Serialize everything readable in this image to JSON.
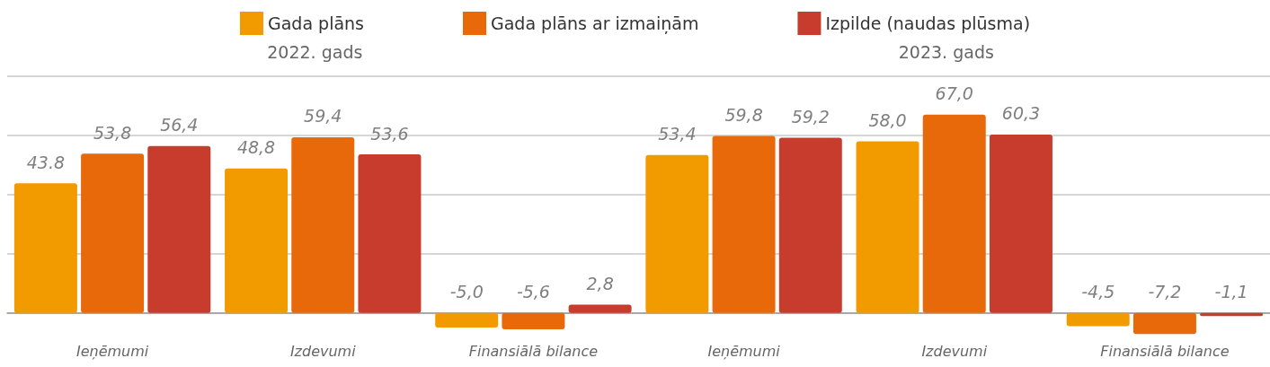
{
  "chart_data": {
    "type": "bar",
    "categories": [
      "Ieņēmumi",
      "Izdevumi",
      "Finansiālā bilance",
      "Ieņēmumi",
      "Izdevumi",
      "Finansiālā bilance"
    ],
    "series": [
      {
        "name": "Gada plāns",
        "color": "#f29b00",
        "values": [
          43.8,
          48.8,
          -5.0,
          53.4,
          58.0,
          -4.5
        ],
        "value_labels": [
          "43.8",
          "48,8",
          "-5,0",
          "53,4",
          "58,0",
          "-4,5"
        ]
      },
      {
        "name": "Gada plāns ar izmaiņām",
        "color": "#e8690a",
        "values": [
          53.8,
          59.4,
          -5.6,
          59.8,
          67.0,
          -7.2
        ],
        "value_labels": [
          "53,8",
          "59,4",
          "-5,6",
          "59,8",
          "67,0",
          "-7,2"
        ]
      },
      {
        "name": "Izpilde (naudas plūsma)",
        "color": "#c83c2e",
        "values": [
          56.4,
          53.6,
          2.8,
          59.2,
          60.3,
          -1.1
        ],
        "value_labels": [
          "56,4",
          "53,6",
          "2,8",
          "59,2",
          "60,3",
          "-1,1"
        ]
      }
    ],
    "annotations": [
      "2022. gads",
      "2023. gads"
    ],
    "ylim": [
      -8,
      80
    ],
    "yticks": [
      {
        "value": 0,
        "label": null
      },
      {
        "value": 20,
        "label": null
      },
      {
        "value": 40,
        "label": null
      },
      {
        "value": 60,
        "label": null
      },
      {
        "value": 80,
        "label": null
      }
    ],
    "grid": "y",
    "legend": "top",
    "tick_labels": "x"
  }
}
